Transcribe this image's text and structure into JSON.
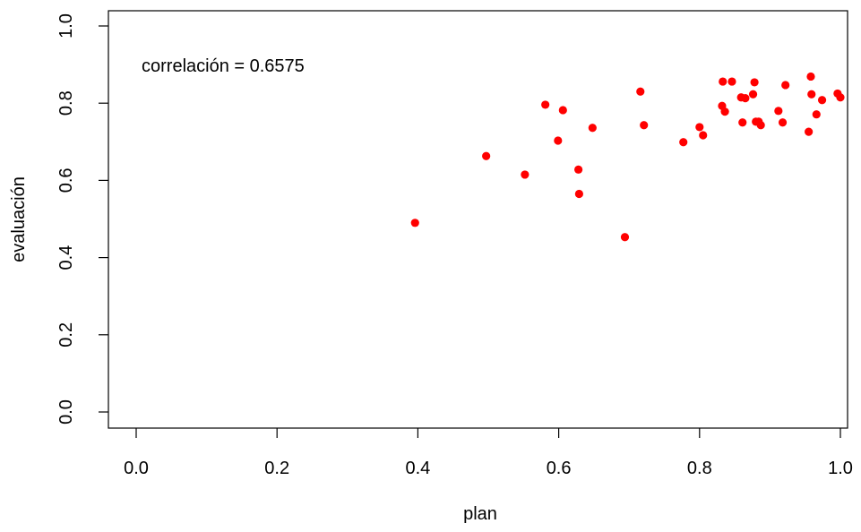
{
  "chart_data": {
    "type": "scatter",
    "title": "",
    "xlabel": "plan",
    "ylabel": "evaluación",
    "xlim": [
      0,
      1
    ],
    "ylim": [
      0,
      1
    ],
    "xticks": [
      "0.0",
      "0.2",
      "0.4",
      "0.6",
      "0.8",
      "1.0"
    ],
    "yticks": [
      "0.0",
      "0.2",
      "0.4",
      "0.6",
      "0.8",
      "1.0"
    ],
    "grid": false,
    "annotation": "correlación = 0.6575",
    "point_color": "#ff0000",
    "points": [
      {
        "x": 0.396,
        "y": 0.49
      },
      {
        "x": 0.497,
        "y": 0.663
      },
      {
        "x": 0.552,
        "y": 0.615
      },
      {
        "x": 0.581,
        "y": 0.796
      },
      {
        "x": 0.599,
        "y": 0.703
      },
      {
        "x": 0.606,
        "y": 0.782
      },
      {
        "x": 0.628,
        "y": 0.628
      },
      {
        "x": 0.629,
        "y": 0.565
      },
      {
        "x": 0.648,
        "y": 0.736
      },
      {
        "x": 0.694,
        "y": 0.453
      },
      {
        "x": 0.716,
        "y": 0.83
      },
      {
        "x": 0.721,
        "y": 0.743
      },
      {
        "x": 0.777,
        "y": 0.699
      },
      {
        "x": 0.8,
        "y": 0.738
      },
      {
        "x": 0.805,
        "y": 0.717
      },
      {
        "x": 0.832,
        "y": 0.793
      },
      {
        "x": 0.833,
        "y": 0.856
      },
      {
        "x": 0.836,
        "y": 0.778
      },
      {
        "x": 0.846,
        "y": 0.856
      },
      {
        "x": 0.859,
        "y": 0.815
      },
      {
        "x": 0.861,
        "y": 0.75
      },
      {
        "x": 0.865,
        "y": 0.813
      },
      {
        "x": 0.876,
        "y": 0.823
      },
      {
        "x": 0.878,
        "y": 0.854
      },
      {
        "x": 0.88,
        "y": 0.752
      },
      {
        "x": 0.884,
        "y": 0.752
      },
      {
        "x": 0.887,
        "y": 0.743
      },
      {
        "x": 0.912,
        "y": 0.78
      },
      {
        "x": 0.918,
        "y": 0.75
      },
      {
        "x": 0.922,
        "y": 0.847
      },
      {
        "x": 0.955,
        "y": 0.726
      },
      {
        "x": 0.958,
        "y": 0.869
      },
      {
        "x": 0.959,
        "y": 0.823
      },
      {
        "x": 0.966,
        "y": 0.771
      },
      {
        "x": 0.974,
        "y": 0.808
      },
      {
        "x": 0.996,
        "y": 0.825
      },
      {
        "x": 1.0,
        "y": 0.815
      }
    ]
  }
}
